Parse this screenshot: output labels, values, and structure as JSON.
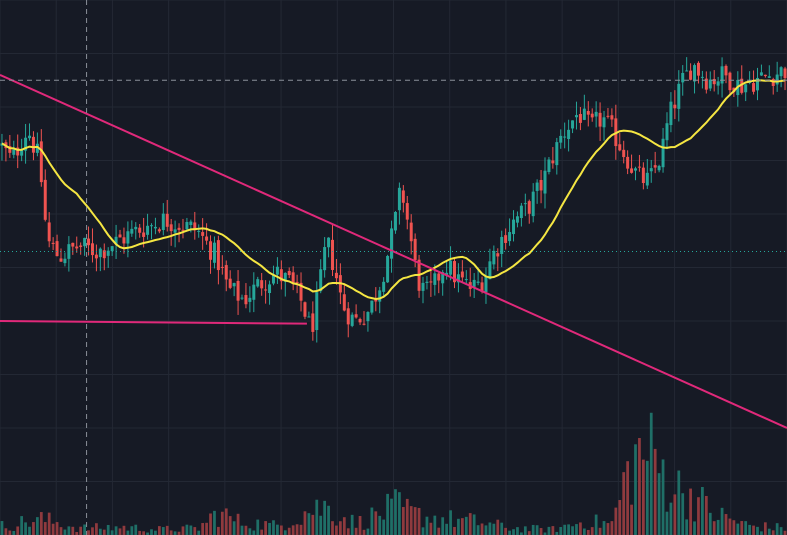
{
  "chart_data": {
    "type": "candlestick",
    "grid": true,
    "colors": {
      "background": "#161a25",
      "grid": "#232834",
      "up": "#26a69a",
      "down": "#ef5350",
      "ma": "#f5e642",
      "trendline": "#e0297a",
      "crosshair": "#8a8f99",
      "price_line": "#26a69a",
      "volume_up": "#1f6f67",
      "volume_down": "#8f3a3e"
    },
    "y_range": [
      0,
      100
    ],
    "x_range": [
      0,
      200
    ],
    "volume_range": [
      0,
      100
    ],
    "ma_period": 20,
    "crosshair": {
      "x": 22,
      "y": 85
    },
    "price_line_y": 53,
    "trendlines": [
      {
        "x1": 0,
        "y1": 86,
        "x2": 200,
        "y2": 20
      },
      {
        "x1": 0,
        "y1": 40,
        "x2": 78,
        "y2": 39.5
      }
    ],
    "anchors": [
      [
        0,
        73
      ],
      [
        3,
        70
      ],
      [
        7,
        76
      ],
      [
        10,
        70
      ],
      [
        12,
        55
      ],
      [
        15,
        52
      ],
      [
        20,
        54
      ],
      [
        25,
        53
      ],
      [
        30,
        55
      ],
      [
        35,
        57
      ],
      [
        42,
        59
      ],
      [
        50,
        57
      ],
      [
        55,
        52
      ],
      [
        58,
        46
      ],
      [
        62,
        44
      ],
      [
        66,
        47
      ],
      [
        70,
        49
      ],
      [
        74,
        47
      ],
      [
        77,
        43
      ],
      [
        79,
        38
      ],
      [
        81,
        45
      ],
      [
        83,
        55
      ],
      [
        85,
        50
      ],
      [
        87,
        43
      ],
      [
        90,
        40
      ],
      [
        94,
        42
      ],
      [
        97,
        48
      ],
      [
        100,
        57
      ],
      [
        102,
        65
      ],
      [
        104,
        57
      ],
      [
        106,
        48
      ],
      [
        108,
        45
      ],
      [
        110,
        46
      ],
      [
        113,
        51
      ],
      [
        116,
        48
      ],
      [
        120,
        46
      ],
      [
        123,
        48
      ],
      [
        125,
        52
      ],
      [
        128,
        56
      ],
      [
        131,
        59
      ],
      [
        134,
        61
      ],
      [
        138,
        66
      ],
      [
        140,
        70
      ],
      [
        143,
        75
      ],
      [
        147,
        79
      ],
      [
        150,
        76
      ],
      [
        153,
        78
      ],
      [
        156,
        75
      ],
      [
        159,
        71
      ],
      [
        162,
        67
      ],
      [
        165,
        66
      ],
      [
        168,
        71
      ],
      [
        170,
        78
      ],
      [
        173,
        84
      ],
      [
        176,
        88
      ],
      [
        180,
        85
      ],
      [
        184,
        86
      ],
      [
        188,
        84
      ],
      [
        192,
        85
      ],
      [
        196,
        86
      ],
      [
        200,
        87
      ]
    ],
    "volume_anchors": [
      [
        0,
        8
      ],
      [
        10,
        14
      ],
      [
        20,
        6
      ],
      [
        30,
        7
      ],
      [
        40,
        5
      ],
      [
        50,
        6
      ],
      [
        55,
        20
      ],
      [
        60,
        12
      ],
      [
        70,
        8
      ],
      [
        78,
        22
      ],
      [
        82,
        25
      ],
      [
        90,
        10
      ],
      [
        100,
        25
      ],
      [
        105,
        18
      ],
      [
        110,
        15
      ],
      [
        120,
        12
      ],
      [
        130,
        6
      ],
      [
        140,
        5
      ],
      [
        148,
        12
      ],
      [
        155,
        10
      ],
      [
        160,
        65
      ],
      [
        164,
        75
      ],
      [
        168,
        55
      ],
      [
        172,
        40
      ],
      [
        176,
        35
      ],
      [
        180,
        20
      ],
      [
        190,
        8
      ],
      [
        200,
        6
      ]
    ]
  }
}
